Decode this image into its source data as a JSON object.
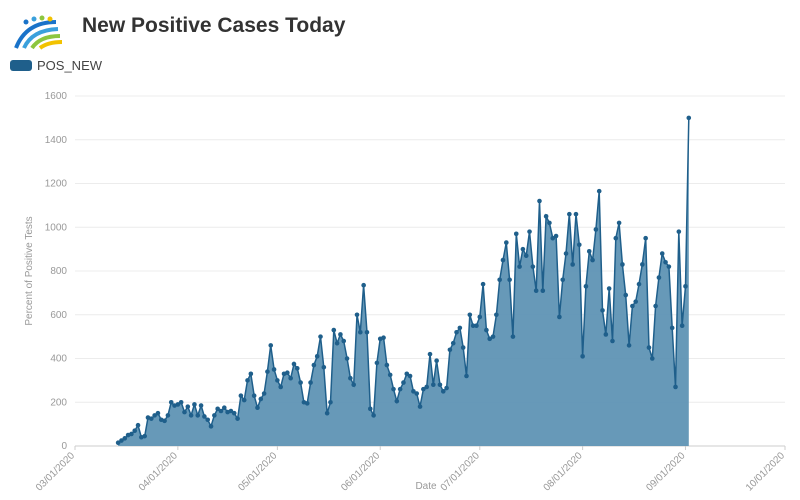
{
  "chart_data": {
    "type": "line",
    "title": "New Positive Cases Today",
    "xlabel": "Date",
    "ylabel": "Percent of Positive Tests",
    "legend": "top-left",
    "grid": true,
    "area": true,
    "xlim": [
      "03/01/2020",
      "10/01/2020"
    ],
    "xticks": [
      "03/01/2020",
      "04/01/2020",
      "05/01/2020",
      "06/01/2020",
      "07/01/2020",
      "08/01/2020",
      "09/01/2020",
      "10/01/2020"
    ],
    "ylim": [
      0,
      1600
    ],
    "yticks": [
      0,
      200,
      400,
      600,
      800,
      1000,
      1200,
      1400,
      1600
    ],
    "x": [
      "03/14/2020",
      "03/15/2020",
      "03/16/2020",
      "03/17/2020",
      "03/18/2020",
      "03/19/2020",
      "03/20/2020",
      "03/21/2020",
      "03/22/2020",
      "03/23/2020",
      "03/24/2020",
      "03/25/2020",
      "03/26/2020",
      "03/27/2020",
      "03/28/2020",
      "03/29/2020",
      "03/30/2020",
      "03/31/2020",
      "04/01/2020",
      "04/02/2020",
      "04/03/2020",
      "04/04/2020",
      "04/05/2020",
      "04/06/2020",
      "04/07/2020",
      "04/08/2020",
      "04/09/2020",
      "04/10/2020",
      "04/11/2020",
      "04/12/2020",
      "04/13/2020",
      "04/14/2020",
      "04/15/2020",
      "04/16/2020",
      "04/17/2020",
      "04/18/2020",
      "04/19/2020",
      "04/20/2020",
      "04/21/2020",
      "04/22/2020",
      "04/23/2020",
      "04/24/2020",
      "04/25/2020",
      "04/26/2020",
      "04/27/2020",
      "04/28/2020",
      "04/29/2020",
      "04/30/2020",
      "05/01/2020",
      "05/02/2020",
      "05/03/2020",
      "05/04/2020",
      "05/05/2020",
      "05/06/2020",
      "05/07/2020",
      "05/08/2020",
      "05/09/2020",
      "05/10/2020",
      "05/11/2020",
      "05/12/2020",
      "05/13/2020",
      "05/14/2020",
      "05/15/2020",
      "05/16/2020",
      "05/17/2020",
      "05/18/2020",
      "05/19/2020",
      "05/20/2020",
      "05/21/2020",
      "05/22/2020",
      "05/23/2020",
      "05/24/2020",
      "05/25/2020",
      "05/26/2020",
      "05/27/2020",
      "05/28/2020",
      "05/29/2020",
      "05/30/2020",
      "05/31/2020",
      "06/01/2020",
      "06/02/2020",
      "06/03/2020",
      "06/04/2020",
      "06/05/2020",
      "06/06/2020",
      "06/07/2020",
      "06/08/2020",
      "06/09/2020",
      "06/10/2020",
      "06/11/2020",
      "06/12/2020",
      "06/13/2020",
      "06/14/2020",
      "06/15/2020",
      "06/16/2020",
      "06/17/2020",
      "06/18/2020",
      "06/19/2020",
      "06/20/2020",
      "06/21/2020",
      "06/22/2020",
      "06/23/2020",
      "06/24/2020",
      "06/25/2020",
      "06/26/2020",
      "06/27/2020",
      "06/28/2020",
      "06/29/2020",
      "06/30/2020",
      "07/01/2020",
      "07/02/2020",
      "07/03/2020",
      "07/04/2020",
      "07/05/2020",
      "07/06/2020",
      "07/07/2020",
      "07/08/2020",
      "07/09/2020",
      "07/10/2020",
      "07/11/2020",
      "07/12/2020",
      "07/13/2020",
      "07/14/2020",
      "07/15/2020",
      "07/16/2020",
      "07/17/2020",
      "07/18/2020",
      "07/19/2020",
      "07/20/2020",
      "07/21/2020",
      "07/22/2020",
      "07/23/2020",
      "07/24/2020",
      "07/25/2020",
      "07/26/2020",
      "07/27/2020",
      "07/28/2020",
      "07/29/2020",
      "07/30/2020",
      "07/31/2020",
      "08/01/2020",
      "08/02/2020",
      "08/03/2020",
      "08/04/2020",
      "08/05/2020",
      "08/06/2020",
      "08/07/2020",
      "08/08/2020",
      "08/09/2020",
      "08/10/2020",
      "08/11/2020",
      "08/12/2020",
      "08/13/2020",
      "08/14/2020",
      "08/15/2020",
      "08/16/2020",
      "08/17/2020",
      "08/18/2020",
      "08/19/2020",
      "08/20/2020",
      "08/21/2020",
      "08/22/2020",
      "08/23/2020",
      "08/24/2020",
      "08/25/2020",
      "08/26/2020",
      "08/27/2020",
      "08/28/2020",
      "08/29/2020",
      "08/30/2020",
      "08/31/2020",
      "09/01/2020",
      "09/02/2020"
    ],
    "series": [
      {
        "name": "POS_NEW",
        "color": "#1f5f8b",
        "fill": "#5f93b4",
        "values": [
          15,
          25,
          35,
          50,
          55,
          70,
          95,
          40,
          45,
          130,
          125,
          140,
          150,
          120,
          115,
          140,
          200,
          185,
          190,
          200,
          155,
          180,
          140,
          190,
          140,
          185,
          135,
          120,
          90,
          140,
          170,
          160,
          175,
          155,
          160,
          150,
          125,
          230,
          210,
          300,
          330,
          230,
          175,
          215,
          240,
          340,
          460,
          350,
          300,
          270,
          330,
          335,
          310,
          375,
          355,
          290,
          200,
          195,
          290,
          370,
          410,
          500,
          360,
          150,
          200,
          530,
          470,
          510,
          480,
          400,
          310,
          280,
          600,
          520,
          735,
          520,
          170,
          140,
          380,
          490,
          495,
          370,
          325,
          260,
          205,
          260,
          290,
          330,
          320,
          250,
          240,
          180,
          260,
          270,
          420,
          280,
          390,
          280,
          250,
          265,
          440,
          470,
          520,
          540,
          450,
          320,
          600,
          550,
          550,
          590,
          740,
          530,
          490,
          500,
          600,
          760,
          850,
          930,
          760,
          500,
          970,
          820,
          900,
          870,
          980,
          820,
          710,
          1120,
          710,
          1050,
          1020,
          950,
          960,
          590,
          760,
          880,
          1060,
          830,
          1060,
          920,
          410,
          730,
          890,
          850,
          990,
          1165,
          620,
          510,
          720,
          480,
          950,
          1020,
          830,
          690,
          460,
          640,
          660,
          740,
          830,
          950,
          450,
          400,
          640,
          770,
          880,
          840,
          820,
          540,
          270,
          980,
          550,
          730,
          1500
        ]
      }
    ]
  }
}
